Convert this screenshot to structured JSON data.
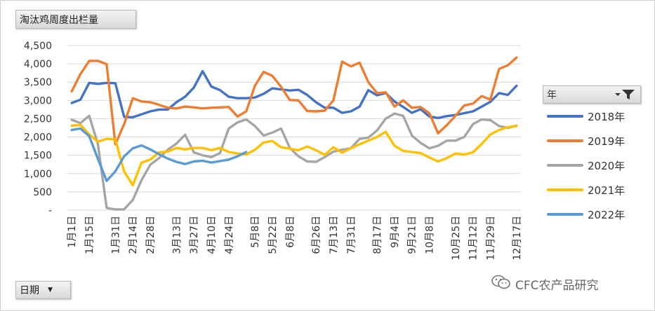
{
  "title_button": "淘汰鸡周度出栏量",
  "date_button": "日期",
  "legend_title": "年",
  "watermark": "CFC农产品研究",
  "chart_data": {
    "type": "line",
    "title": "淘汰鸡周度出栏量",
    "ylim": [
      0,
      4500
    ],
    "ytick_labels": [
      "-",
      "500",
      "1,000",
      "1,500",
      "2,000",
      "2,500",
      "3,000",
      "3,500",
      "4,000",
      "4,500"
    ],
    "x_tick_labels": [
      "1月1日",
      "1月15日",
      "1月31日",
      "2月14日",
      "2月28日",
      "3月13日",
      "3月27日",
      "4月10日",
      "4月24日",
      "5月8日",
      "5月22日",
      "6月8日",
      "6月26日",
      "7月13日",
      "7月31日",
      "8月17日",
      "9月4日",
      "9月21日",
      "10月8日",
      "10月25日",
      "11月12日",
      "11月29日",
      "12月17日"
    ],
    "grid": true,
    "legend_position": "right",
    "series": [
      {
        "name": "2018年",
        "color": "#4472C4",
        "values": [
          2930,
          3020,
          3480,
          3450,
          3480,
          3470,
          2550,
          2540,
          2620,
          2700,
          2750,
          2750,
          2950,
          3100,
          3350,
          3800,
          3380,
          3280,
          3100,
          3060,
          3060,
          3080,
          3180,
          3330,
          3300,
          3270,
          3290,
          3150,
          2950,
          2800,
          2800,
          2660,
          2700,
          2830,
          3280,
          3140,
          3200,
          2970,
          2820,
          2660,
          2760,
          2560,
          2520,
          2570,
          2600,
          2650,
          2700,
          2830,
          2960,
          3200,
          3150,
          3400
        ]
      },
      {
        "name": "2019年",
        "color": "#ED7D31",
        "values": [
          3250,
          3720,
          4080,
          4080,
          3990,
          1800,
          2350,
          3060,
          2970,
          2950,
          2880,
          2800,
          2780,
          2830,
          2810,
          2780,
          2800,
          2810,
          2820,
          2560,
          2700,
          3400,
          3780,
          3670,
          3370,
          3010,
          3000,
          2710,
          2700,
          2720,
          3000,
          4060,
          3930,
          4030,
          3500,
          3200,
          3220,
          2830,
          3000,
          2800,
          2820,
          2650,
          2100,
          2320,
          2580,
          2860,
          2910,
          3120,
          3020,
          3860,
          3960,
          4170
        ]
      },
      {
        "name": "2020年",
        "color": "#A5A5A5",
        "values": [
          2470,
          2380,
          2580,
          1800,
          60,
          20,
          20,
          280,
          820,
          1240,
          1420,
          1650,
          1820,
          2060,
          1580,
          1500,
          1450,
          1560,
          2230,
          2400,
          2480,
          2300,
          2040,
          2120,
          2230,
          1700,
          1470,
          1330,
          1320,
          1450,
          1600,
          1650,
          1690,
          1950,
          1980,
          2180,
          2500,
          2640,
          2580,
          2040,
          1840,
          1690,
          1760,
          1900,
          1900,
          2000,
          2350,
          2480,
          2460,
          2300,
          2250,
          2310
        ]
      },
      {
        "name": "2021年",
        "color": "#FFC000",
        "values": [
          2310,
          2330,
          2070,
          1870,
          1950,
          1930,
          1060,
          680,
          1300,
          1380,
          1580,
          1600,
          1700,
          1660,
          1700,
          1700,
          1640,
          1700,
          1590,
          1550,
          1520,
          1650,
          1850,
          1890,
          1720,
          1680,
          1640,
          1740,
          1640,
          1510,
          1720,
          1570,
          1690,
          1800,
          1900,
          2000,
          2140,
          1760,
          1620,
          1590,
          1560,
          1440,
          1330,
          1420,
          1550,
          1520,
          1580,
          1810,
          2070,
          2190,
          2270,
          2300
        ]
      },
      {
        "name": "2022年",
        "color": "#5B9BD5",
        "values": [
          2190,
          2230,
          2020,
          1400,
          800,
          1060,
          1470,
          1690,
          1770,
          1660,
          1530,
          1410,
          1320,
          1260,
          1330,
          1350,
          1300,
          1340,
          1380,
          1470,
          1590
        ]
      }
    ]
  }
}
